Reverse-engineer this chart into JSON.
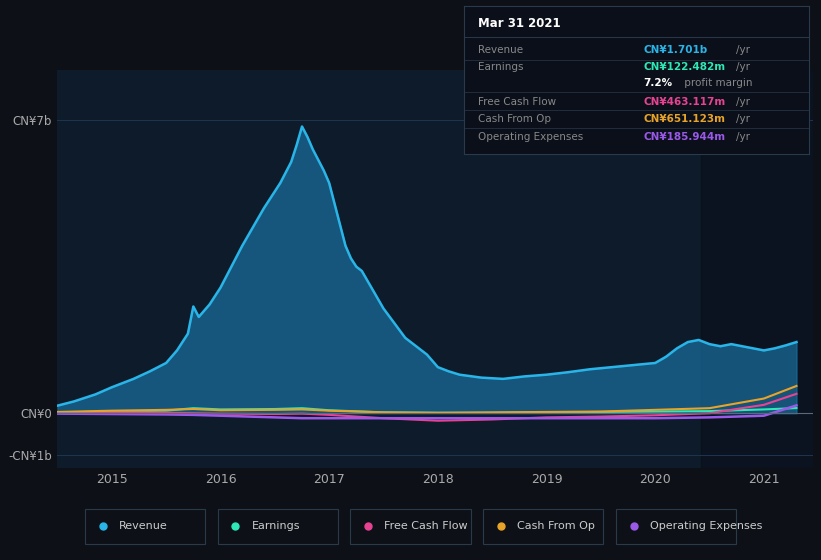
{
  "bg_color": "#0d1117",
  "plot_bg_color": "#0d1b2a",
  "plot_bg_color2": "#111927",
  "grid_color": "#1e3550",
  "title_box": {
    "date": "Mar 31 2021",
    "rows": [
      {
        "label": "Revenue",
        "value": "CN¥1.701b",
        "unit": "/yr",
        "value_color": "#29b5e8"
      },
      {
        "label": "Earnings",
        "value": "CN¥122.482m",
        "unit": "/yr",
        "value_color": "#2ee8b5"
      },
      {
        "label": "",
        "value": "7.2%",
        "unit": " profit margin",
        "value_color": "#ffffff"
      },
      {
        "label": "Free Cash Flow",
        "value": "CN¥463.117m",
        "unit": "/yr",
        "value_color": "#e84393"
      },
      {
        "label": "Cash From Op",
        "value": "CN¥651.123m",
        "unit": "/yr",
        "value_color": "#e8a329"
      },
      {
        "label": "Operating Expenses",
        "value": "CN¥185.944m",
        "unit": "/yr",
        "value_color": "#9b59e8"
      }
    ]
  },
  "legend": [
    {
      "label": "Revenue",
      "color": "#29b5e8"
    },
    {
      "label": "Earnings",
      "color": "#2ee8b5"
    },
    {
      "label": "Free Cash Flow",
      "color": "#e84393"
    },
    {
      "label": "Cash From Op",
      "color": "#e8a329"
    },
    {
      "label": "Operating Expenses",
      "color": "#9b59e8"
    }
  ],
  "yticks": [
    "CN¥7b",
    "CN¥0",
    "-CN¥1b"
  ],
  "ytick_vals": [
    7000000000.0,
    0,
    -1000000000.0
  ],
  "ylim": [
    -1300000000.0,
    8200000000.0
  ],
  "xlim_start": 2014.5,
  "xlim_end": 2021.45,
  "xticks": [
    2015,
    2016,
    2017,
    2018,
    2019,
    2020,
    2021
  ],
  "shaded_region_start": 2020.42,
  "revenue_x": [
    2014.5,
    2014.65,
    2014.85,
    2015.0,
    2015.1,
    2015.2,
    2015.35,
    2015.5,
    2015.6,
    2015.7,
    2015.75,
    2015.8,
    2015.9,
    2016.0,
    2016.1,
    2016.2,
    2016.4,
    2016.55,
    2016.65,
    2016.7,
    2016.75,
    2016.8,
    2016.85,
    2016.95,
    2017.0,
    2017.05,
    2017.1,
    2017.15,
    2017.2,
    2017.25,
    2017.3,
    2017.5,
    2017.7,
    2017.9,
    2018.0,
    2018.1,
    2018.2,
    2018.4,
    2018.6,
    2018.8,
    2019.0,
    2019.2,
    2019.4,
    2019.6,
    2019.8,
    2020.0,
    2020.1,
    2020.2,
    2020.3,
    2020.4,
    2020.5,
    2020.6,
    2020.7,
    2020.8,
    2020.9,
    2021.0,
    2021.1,
    2021.2,
    2021.3
  ],
  "revenue_y": [
    180000000.0,
    280000000.0,
    450000000.0,
    620000000.0,
    720000000.0,
    820000000.0,
    1000000000.0,
    1200000000.0,
    1500000000.0,
    1900000000.0,
    2550000000.0,
    2300000000.0,
    2600000000.0,
    3000000000.0,
    3500000000.0,
    4000000000.0,
    4900000000.0,
    5500000000.0,
    6000000000.0,
    6400000000.0,
    6850000000.0,
    6600000000.0,
    6300000000.0,
    5800000000.0,
    5500000000.0,
    5000000000.0,
    4500000000.0,
    4000000000.0,
    3700000000.0,
    3500000000.0,
    3400000000.0,
    2500000000.0,
    1800000000.0,
    1400000000.0,
    1100000000.0,
    1000000000.0,
    920000000.0,
    850000000.0,
    820000000.0,
    880000000.0,
    920000000.0,
    980000000.0,
    1050000000.0,
    1100000000.0,
    1150000000.0,
    1200000000.0,
    1350000000.0,
    1550000000.0,
    1700000000.0,
    1750000000.0,
    1650000000.0,
    1600000000.0,
    1650000000.0,
    1600000000.0,
    1550000000.0,
    1500000000.0,
    1550000000.0,
    1620000000.0,
    1700000000.0
  ],
  "earnings_x": [
    2014.5,
    2015.0,
    2015.5,
    2015.75,
    2016.0,
    2016.5,
    2016.75,
    2017.0,
    2017.5,
    2018.0,
    2018.5,
    2019.0,
    2019.5,
    2020.0,
    2020.5,
    2021.0,
    2021.3
  ],
  "earnings_y": [
    20000000.0,
    40000000.0,
    60000000.0,
    120000000.0,
    90000000.0,
    100000000.0,
    120000000.0,
    70000000.0,
    20000000.0,
    10000000.0,
    10000000.0,
    20000000.0,
    30000000.0,
    40000000.0,
    50000000.0,
    90000000.0,
    122000000.0
  ],
  "fcf_x": [
    2014.5,
    2015.0,
    2015.5,
    2015.75,
    2016.0,
    2016.5,
    2016.75,
    2017.0,
    2017.5,
    2018.0,
    2018.5,
    2019.0,
    2019.5,
    2020.0,
    2020.5,
    2021.0,
    2021.3
  ],
  "fcf_y": [
    10000000.0,
    20000000.0,
    10000000.0,
    0.0,
    -10000000.0,
    -20000000.0,
    -10000000.0,
    -40000000.0,
    -120000000.0,
    -180000000.0,
    -150000000.0,
    -100000000.0,
    -80000000.0,
    -50000000.0,
    0.0,
    200000000.0,
    463000000.0
  ],
  "cashop_x": [
    2014.5,
    2015.0,
    2015.5,
    2015.75,
    2016.0,
    2016.5,
    2016.75,
    2017.0,
    2017.5,
    2018.0,
    2018.5,
    2019.0,
    2019.5,
    2020.0,
    2020.5,
    2021.0,
    2021.3
  ],
  "cashop_y": [
    30000000.0,
    60000000.0,
    80000000.0,
    100000000.0,
    70000000.0,
    80000000.0,
    90000000.0,
    60000000.0,
    20000000.0,
    10000000.0,
    20000000.0,
    30000000.0,
    40000000.0,
    80000000.0,
    120000000.0,
    350000000.0,
    651000000.0
  ],
  "opex_x": [
    2014.5,
    2015.0,
    2015.5,
    2015.75,
    2016.0,
    2016.5,
    2016.75,
    2017.0,
    2017.5,
    2018.0,
    2018.5,
    2019.0,
    2019.5,
    2020.0,
    2020.5,
    2021.0,
    2021.3
  ],
  "opex_y": [
    -10000000.0,
    -20000000.0,
    -30000000.0,
    -40000000.0,
    -60000000.0,
    -100000000.0,
    -120000000.0,
    -120000000.0,
    -120000000.0,
    -120000000.0,
    -120000000.0,
    -120000000.0,
    -120000000.0,
    -120000000.0,
    -100000000.0,
    -60000000.0,
    186000000.0
  ]
}
